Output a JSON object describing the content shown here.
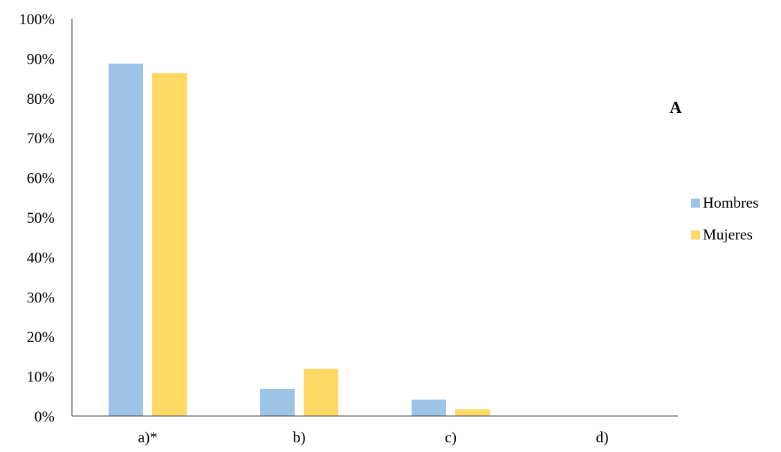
{
  "chart_data": {
    "type": "bar",
    "title": "",
    "xlabel": "",
    "ylabel": "",
    "categories": [
      "a)*",
      "b)",
      "c)",
      "d)"
    ],
    "series": [
      {
        "name": "Hombres",
        "color": "#9DC3E6",
        "values": [
          88.7,
          6.8,
          4.1,
          0
        ]
      },
      {
        "name": "Mujeres",
        "color": "#FFD966",
        "values": [
          86.3,
          11.9,
          1.7,
          0
        ]
      }
    ],
    "ylim": [
      0,
      100
    ],
    "yticks": [
      "0%",
      "10%",
      "20%",
      "30%",
      "40%",
      "50%",
      "60%",
      "70%",
      "80%",
      "90%",
      "100%"
    ],
    "ytick_values": [
      0,
      10,
      20,
      30,
      40,
      50,
      60,
      70,
      80,
      90,
      100
    ],
    "grid": false,
    "legend_position": "right",
    "annotation": "A"
  }
}
